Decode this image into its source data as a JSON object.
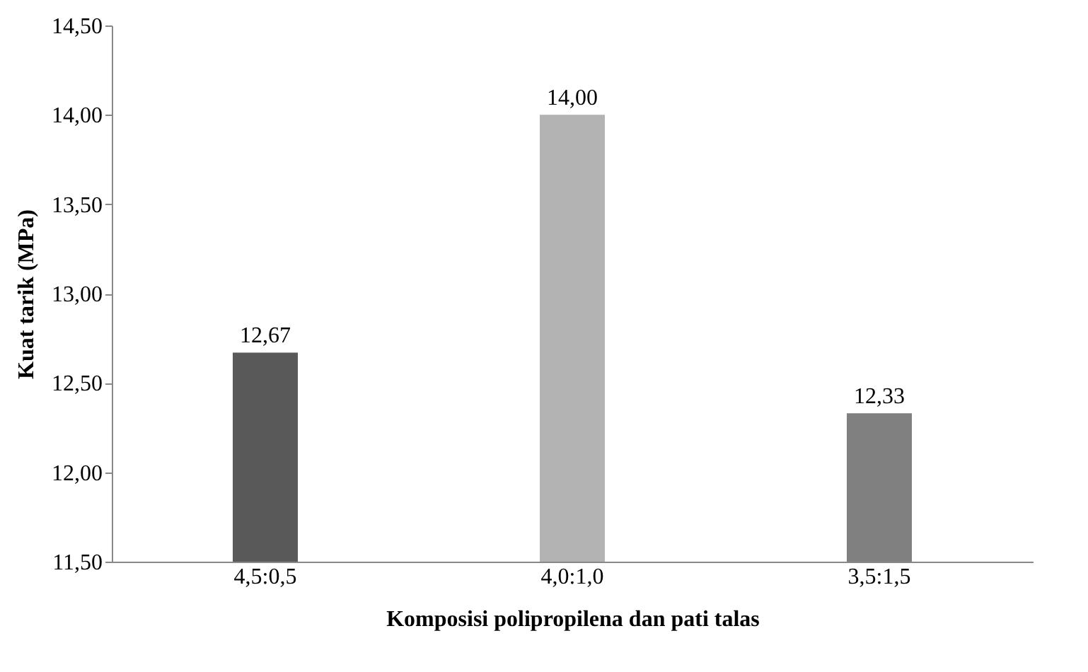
{
  "chart_data": {
    "type": "bar",
    "xlabel": "Komposisi polipropilena dan pati talas",
    "ylabel": "Kuat tarik (MPa)",
    "categories": [
      "4,5:0,5",
      "4,0:1,0",
      "3,5:1,5"
    ],
    "values": [
      12.67,
      14.0,
      12.33
    ],
    "colors": [
      "#595959",
      "#b3b3b3",
      "#808080"
    ],
    "value_labels": [
      "12,67",
      "14,00",
      "12,33"
    ],
    "ylim": [
      11.5,
      14.5
    ],
    "yticks": [
      {
        "value": 11.5,
        "label": "11,50"
      },
      {
        "value": 12.0,
        "label": "12,00"
      },
      {
        "value": 12.5,
        "label": "12,50"
      },
      {
        "value": 13.0,
        "label": "13,00"
      },
      {
        "value": 13.5,
        "label": "13,50"
      },
      {
        "value": 14.0,
        "label": "14,00"
      },
      {
        "value": 14.5,
        "label": "14,50"
      }
    ],
    "grid": false
  }
}
